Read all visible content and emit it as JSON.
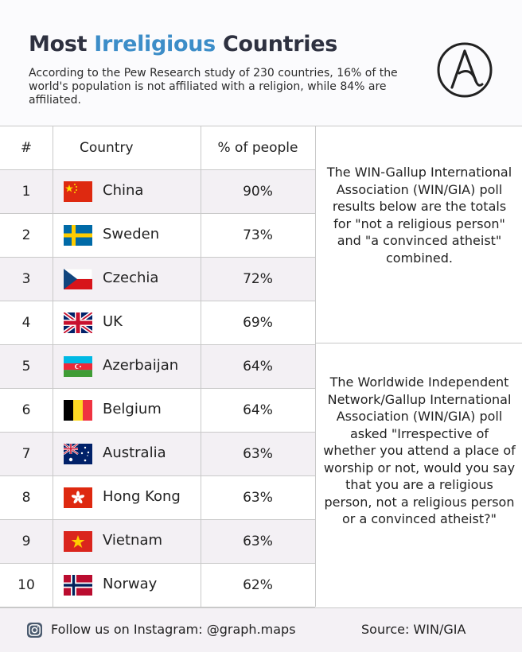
{
  "header": {
    "title_prefix": "Most ",
    "title_accent": "Irreligious",
    "title_suffix": " Countries",
    "subtitle": "According to the Pew Research study of 230 countries, 16% of the world's population is not affiliated with a religion, while 84% are affiliated.",
    "logo_icon": "atheism-symbol-icon"
  },
  "table": {
    "columns": [
      "#",
      "Country",
      "% of people"
    ],
    "rows": [
      {
        "rank": "1",
        "country": "China",
        "percent": "90%",
        "flag": "china-flag-icon"
      },
      {
        "rank": "2",
        "country": "Sweden",
        "percent": "73%",
        "flag": "sweden-flag-icon"
      },
      {
        "rank": "3",
        "country": "Czechia",
        "percent": "72%",
        "flag": "czechia-flag-icon"
      },
      {
        "rank": "4",
        "country": "UK",
        "percent": "69%",
        "flag": "uk-flag-icon"
      },
      {
        "rank": "5",
        "country": "Azerbaijan",
        "percent": "64%",
        "flag": "azerbaijan-flag-icon"
      },
      {
        "rank": "6",
        "country": "Belgium",
        "percent": "64%",
        "flag": "belgium-flag-icon"
      },
      {
        "rank": "7",
        "country": "Australia",
        "percent": "63%",
        "flag": "australia-flag-icon"
      },
      {
        "rank": "8",
        "country": "Hong Kong",
        "percent": "63%",
        "flag": "hong-kong-flag-icon"
      },
      {
        "rank": "9",
        "country": "Vietnam",
        "percent": "63%",
        "flag": "vietnam-flag-icon"
      },
      {
        "rank": "10",
        "country": "Norway",
        "percent": "62%",
        "flag": "norway-flag-icon"
      }
    ]
  },
  "notes": {
    "note1": "The WIN-Gallup International Association (WIN/GIA) poll results below are the totals for \"not a religious person\" and \"a convinced atheist\" combined.",
    "note2": "The Worldwide Independent Network/Gallup International Association (WIN/GIA) poll asked \"Irrespective of whether you attend a place of worship or not, would you say that you are a religious person, not a religious person or a convinced atheist?\""
  },
  "footer": {
    "follow": "Follow us on Instagram: @graph.maps",
    "source": "Source: WIN/GIA",
    "instagram_icon": "instagram-icon"
  },
  "colors": {
    "accent": "#3c8dc8",
    "title": "#2e3140",
    "row_shade": "#f3f0f4"
  }
}
